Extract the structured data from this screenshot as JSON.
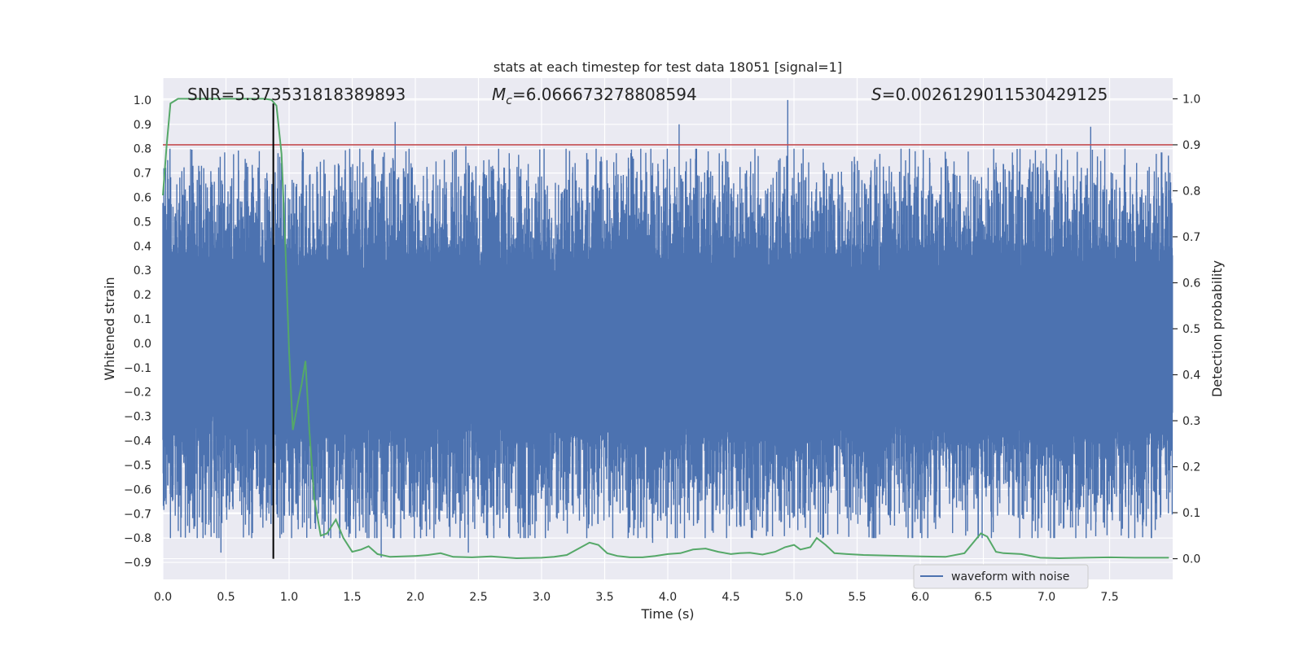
{
  "chart_data": {
    "type": "line",
    "title": "stats at each timestep for test data 18051 [signal=1]",
    "xlabel": "Time (s)",
    "ylabel": "Whitened strain",
    "y2label": "Detection probability",
    "xlim": [
      0.0,
      8.0
    ],
    "ylim": [
      -0.97,
      1.09
    ],
    "y2lim": [
      -0.045,
      1.045
    ],
    "x_ticks": [
      0.0,
      0.5,
      1.0,
      1.5,
      2.0,
      2.5,
      3.0,
      3.5,
      4.0,
      4.5,
      5.0,
      5.5,
      6.0,
      6.5,
      7.0,
      7.5
    ],
    "x_tick_labels": [
      "0.0",
      "0.5",
      "1.0",
      "1.5",
      "2.0",
      "2.5",
      "3.0",
      "3.5",
      "4.0",
      "4.5",
      "5.0",
      "5.5",
      "6.0",
      "6.5",
      "7.0",
      "7.5"
    ],
    "y_ticks": [
      -0.9,
      -0.8,
      -0.7,
      -0.6,
      -0.5,
      -0.4,
      -0.3,
      -0.2,
      -0.1,
      0.0,
      0.1,
      0.2,
      0.3,
      0.4,
      0.5,
      0.6,
      0.7,
      0.8,
      0.9,
      1.0
    ],
    "y_tick_labels": [
      "−0.9",
      "−0.8",
      "−0.7",
      "−0.6",
      "−0.5",
      "−0.4",
      "−0.3",
      "−0.2",
      "−0.1",
      "0.0",
      "0.1",
      "0.2",
      "0.3",
      "0.4",
      "0.5",
      "0.6",
      "0.7",
      "0.8",
      "0.9",
      "1.0"
    ],
    "y2_ticks": [
      0.0,
      0.1,
      0.2,
      0.3,
      0.4,
      0.5,
      0.6,
      0.7,
      0.8,
      0.9,
      1.0
    ],
    "y2_tick_labels": [
      "0.0",
      "0.1",
      "0.2",
      "0.3",
      "0.4",
      "0.5",
      "0.6",
      "0.7",
      "0.8",
      "0.9",
      "1.0"
    ],
    "grid": true,
    "legend": {
      "placement": "lower-right",
      "entries": [
        "waveform with noise"
      ]
    },
    "annotations": {
      "snr": "SNR=5.373531818389893",
      "mc_symbol": "M",
      "mc_sub": "c",
      "mc_value": "=6.066673278808594",
      "s_symbol": "S",
      "s_value": "=0.0026129011530429125"
    },
    "threshold_y2": 0.9,
    "marker_x": 0.875,
    "series": [
      {
        "name": "waveform with noise",
        "color": "#4c72b0",
        "axis": "left",
        "points": 4000,
        "core_amplitude": 0.26,
        "envelope": [
          0.95,
          0.8
        ],
        "peaks": [
          {
            "x": 1.84,
            "y": 0.91
          },
          {
            "x": 4.09,
            "y": 0.9
          },
          {
            "x": 4.95,
            "y": 1.0
          },
          {
            "x": 7.35,
            "y": 0.89
          },
          {
            "x": 2.4,
            "y": 0.81
          },
          {
            "x": 1.95,
            "y": 0.8
          },
          {
            "x": 0.46,
            "y": -0.86
          },
          {
            "x": 1.73,
            "y": -0.88
          },
          {
            "x": 2.42,
            "y": -0.86
          },
          {
            "x": 3.88,
            "y": -0.82
          },
          {
            "x": 6.36,
            "y": -0.79
          },
          {
            "x": 4.7,
            "y": -0.77
          },
          {
            "x": 0.25,
            "y": -0.72
          }
        ]
      },
      {
        "name": "",
        "color": "#55a868",
        "axis": "right",
        "x": [
          0.0,
          0.03,
          0.06,
          0.12,
          0.2,
          0.3,
          0.4,
          0.5,
          0.6,
          0.7,
          0.76,
          0.8,
          0.86,
          0.9,
          0.94,
          0.97,
          1.0,
          1.03,
          1.07,
          1.1,
          1.13,
          1.16,
          1.2,
          1.25,
          1.3,
          1.37,
          1.43,
          1.5,
          1.57,
          1.63,
          1.7,
          1.8,
          2.0,
          2.1,
          2.2,
          2.3,
          2.45,
          2.6,
          2.8,
          3.0,
          3.1,
          3.2,
          3.28,
          3.38,
          3.45,
          3.52,
          3.6,
          3.7,
          3.8,
          3.9,
          4.0,
          4.1,
          4.2,
          4.3,
          4.4,
          4.5,
          4.57,
          4.65,
          4.75,
          4.85,
          4.93,
          5.0,
          5.05,
          5.13,
          5.18,
          5.25,
          5.32,
          5.42,
          5.55,
          6.0,
          6.2,
          6.35,
          6.48,
          6.53,
          6.6,
          6.66,
          6.8,
          6.95,
          7.1,
          7.3,
          7.5,
          7.7,
          7.97
        ],
        "values": [
          0.79,
          0.9,
          0.99,
          1.0,
          1.0,
          1.0,
          1.0,
          1.0,
          1.0,
          1.0,
          1.0,
          1.0,
          0.998,
          0.985,
          0.88,
          0.68,
          0.45,
          0.28,
          0.34,
          0.38,
          0.43,
          0.28,
          0.13,
          0.05,
          0.055,
          0.085,
          0.045,
          0.015,
          0.02,
          0.027,
          0.01,
          0.004,
          0.006,
          0.008,
          0.012,
          0.004,
          0.003,
          0.005,
          0.001,
          0.002,
          0.004,
          0.008,
          0.02,
          0.035,
          0.03,
          0.012,
          0.006,
          0.003,
          0.003,
          0.006,
          0.01,
          0.012,
          0.02,
          0.022,
          0.015,
          0.01,
          0.012,
          0.013,
          0.009,
          0.015,
          0.025,
          0.03,
          0.02,
          0.025,
          0.045,
          0.03,
          0.012,
          0.01,
          0.008,
          0.005,
          0.004,
          0.012,
          0.055,
          0.048,
          0.015,
          0.012,
          0.01,
          0.002,
          0.001,
          0.002,
          0.003,
          0.002,
          0.002
        ]
      }
    ]
  }
}
